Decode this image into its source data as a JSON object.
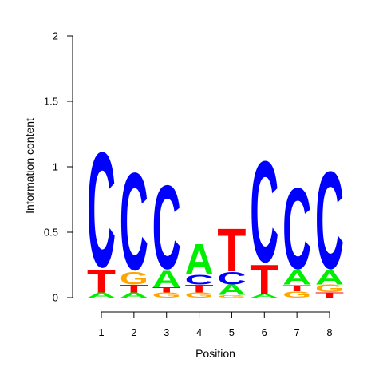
{
  "chart_data": {
    "type": "sequence-logo",
    "xlabel": "Position",
    "ylabel": "Information content",
    "ylim": [
      0,
      2
    ],
    "y_ticks": [
      {
        "value": 0,
        "label": "0"
      },
      {
        "value": 0.5,
        "label": "0.5"
      },
      {
        "value": 1,
        "label": "1"
      },
      {
        "value": 1.5,
        "label": "1.5"
      },
      {
        "value": 2,
        "label": "2"
      }
    ],
    "x_ticks": [
      "1",
      "2",
      "3",
      "4",
      "5",
      "6",
      "7",
      "8"
    ],
    "letter_colors": {
      "A": "#00ee00",
      "C": "#0000ff",
      "G": "#ffa500",
      "T": "#ff0000"
    },
    "positions": [
      {
        "pos": "1",
        "stack": [
          {
            "letter": "A",
            "height": 0.04
          },
          {
            "letter": "T",
            "height": 0.18
          },
          {
            "letter": "C",
            "height": 0.92
          }
        ]
      },
      {
        "pos": "2",
        "stack": [
          {
            "letter": "A",
            "height": 0.04
          },
          {
            "letter": "T",
            "height": 0.06
          },
          {
            "letter": "G",
            "height": 0.1
          },
          {
            "letter": "C",
            "height": 0.78
          }
        ]
      },
      {
        "pos": "3",
        "stack": [
          {
            "letter": "G",
            "height": 0.04
          },
          {
            "letter": "T",
            "height": 0.04
          },
          {
            "letter": "A",
            "height": 0.13
          },
          {
            "letter": "C",
            "height": 0.67
          }
        ]
      },
      {
        "pos": "4",
        "stack": [
          {
            "letter": "G",
            "height": 0.04
          },
          {
            "letter": "T",
            "height": 0.06
          },
          {
            "letter": "C",
            "height": 0.08
          },
          {
            "letter": "A",
            "height": 0.24
          }
        ]
      },
      {
        "pos": "5",
        "stack": [
          {
            "letter": "G",
            "height": 0.02
          },
          {
            "letter": "A",
            "height": 0.08
          },
          {
            "letter": "C",
            "height": 0.1
          },
          {
            "letter": "T",
            "height": 0.34
          }
        ]
      },
      {
        "pos": "6",
        "stack": [
          {
            "letter": "A",
            "height": 0.03
          },
          {
            "letter": "T",
            "height": 0.23
          },
          {
            "letter": "C",
            "height": 0.81
          }
        ]
      },
      {
        "pos": "7",
        "stack": [
          {
            "letter": "G",
            "height": 0.05
          },
          {
            "letter": "T",
            "height": 0.05
          },
          {
            "letter": "A",
            "height": 0.11
          },
          {
            "letter": "C",
            "height": 0.65
          }
        ]
      },
      {
        "pos": "8",
        "stack": [
          {
            "letter": "T",
            "height": 0.04
          },
          {
            "letter": "G",
            "height": 0.06
          },
          {
            "letter": "A",
            "height": 0.11
          },
          {
            "letter": "C",
            "height": 0.78
          }
        ]
      }
    ]
  }
}
